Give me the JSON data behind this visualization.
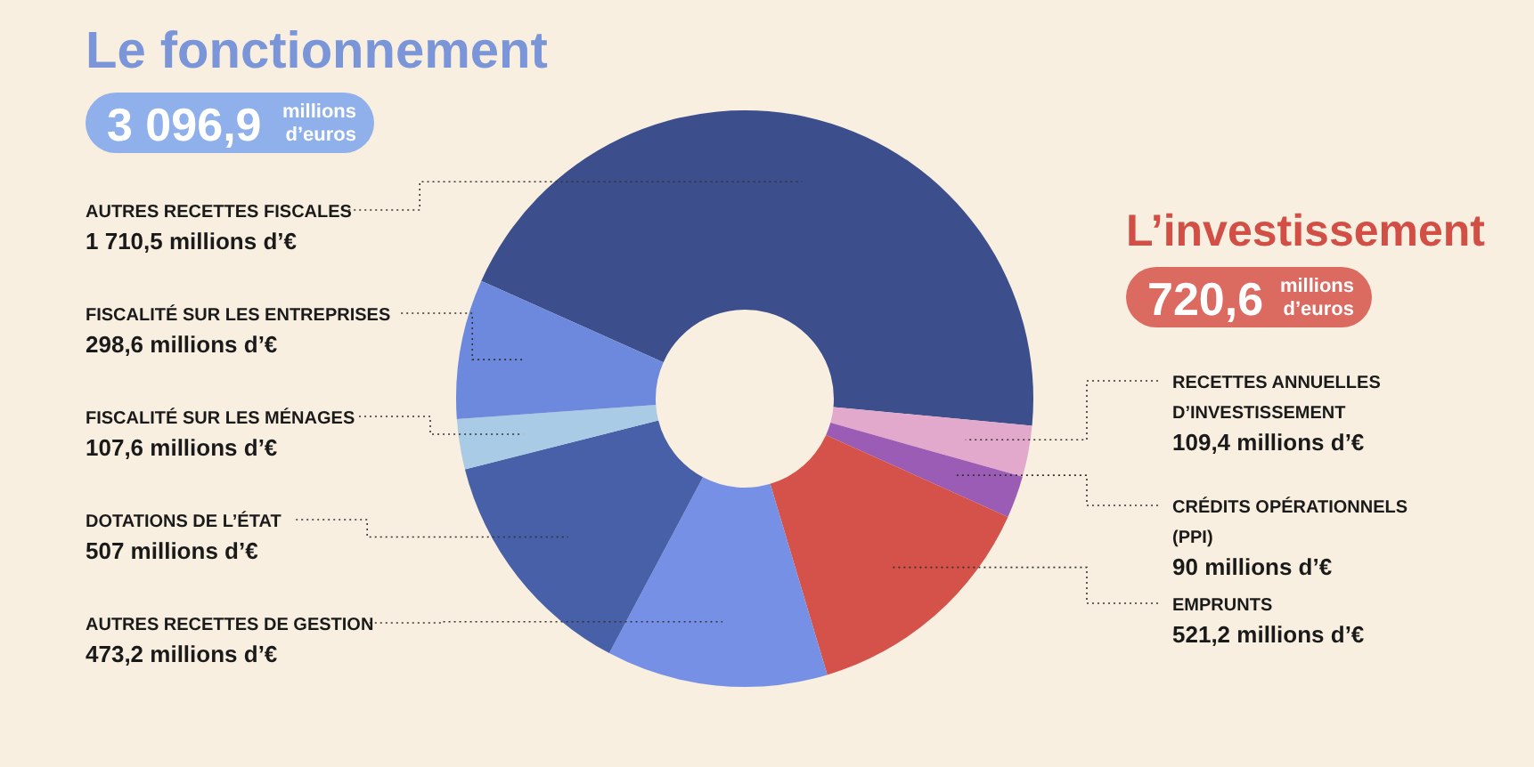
{
  "chart_data": {
    "type": "donut",
    "categories": [
      "AUTRES RECETTES FISCALES",
      "RECETTES ANNUELLES D’INVESTISSEMENT",
      "CRÉDITS OPÉRATIONNELS (PPI)",
      "EMPRUNTS",
      "AUTRES RECETTES DE GESTION",
      "DOTATIONS DE L’ÉTAT",
      "FISCALITÉ SUR LES MÉNAGES",
      "FISCALITÉ SUR LES ENTREPRISES"
    ],
    "values": [
      1710.5,
      109.4,
      90,
      521.2,
      473.2,
      507,
      107.6,
      298.6
    ],
    "value_labels": [
      "1 710,5 millions d’€",
      "109,4 millions d’€",
      "90 millions d’€",
      "521,2 millions d’€",
      "473,2 millions d’€",
      "507 millions d’€",
      "107,6 millions d’€",
      "298,6 millions d’€"
    ],
    "colors": [
      "#3c4f8c",
      "#e3a9cc",
      "#9a5cb5",
      "#d4524a",
      "#7590e4",
      "#4760a8",
      "#a9cbe6",
      "#6d89de"
    ],
    "annotations": [
      "Le fonctionnement",
      "3 096,9",
      "millions",
      "d’euros",
      "L’investissement",
      "720,6",
      "millions",
      "d’euros"
    ]
  }
}
